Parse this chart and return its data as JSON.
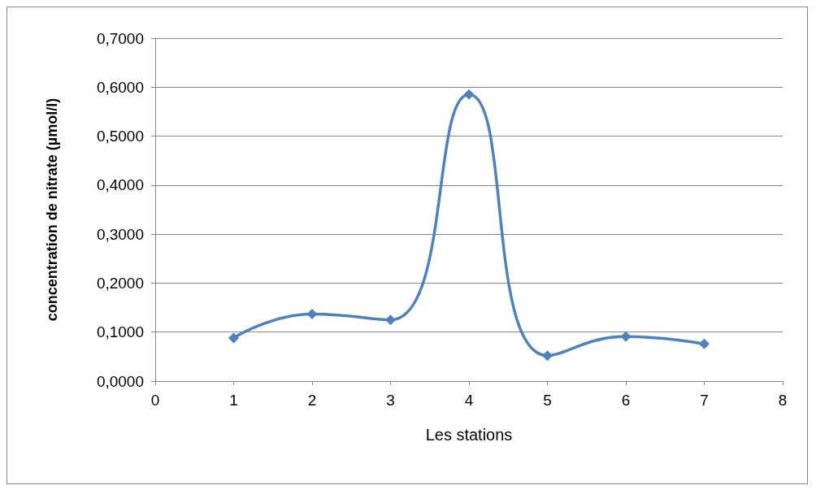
{
  "chart_data": {
    "type": "line",
    "xlabel": "Les stations",
    "ylabel": "concentration de nitrate (µmol/l)",
    "x": [
      1,
      2,
      3,
      4,
      5,
      6,
      7
    ],
    "series": [
      {
        "color": "#4f81bd",
        "values": [
          0.088,
          0.137,
          0.125,
          0.585,
          0.052,
          0.091,
          0.076
        ]
      }
    ],
    "xlim": [
      0,
      8
    ],
    "xticks": [
      0,
      1,
      2,
      3,
      4,
      5,
      6,
      7,
      8
    ],
    "ylim": [
      0,
      0.7
    ],
    "yticks": [
      {
        "value": 0,
        "label": "0,0000"
      },
      {
        "value": 0.1,
        "label": "0,1000"
      },
      {
        "value": 0.2,
        "label": "0,2000"
      },
      {
        "value": 0.3,
        "label": "0,3000"
      },
      {
        "value": 0.4,
        "label": "0,4000"
      },
      {
        "value": 0.5,
        "label": "0,5000"
      },
      {
        "value": 0.6,
        "label": "0,6000"
      },
      {
        "value": 0.7,
        "label": "0,7000"
      }
    ],
    "grid": "y",
    "marker": "diamond",
    "line_style": "solid"
  }
}
